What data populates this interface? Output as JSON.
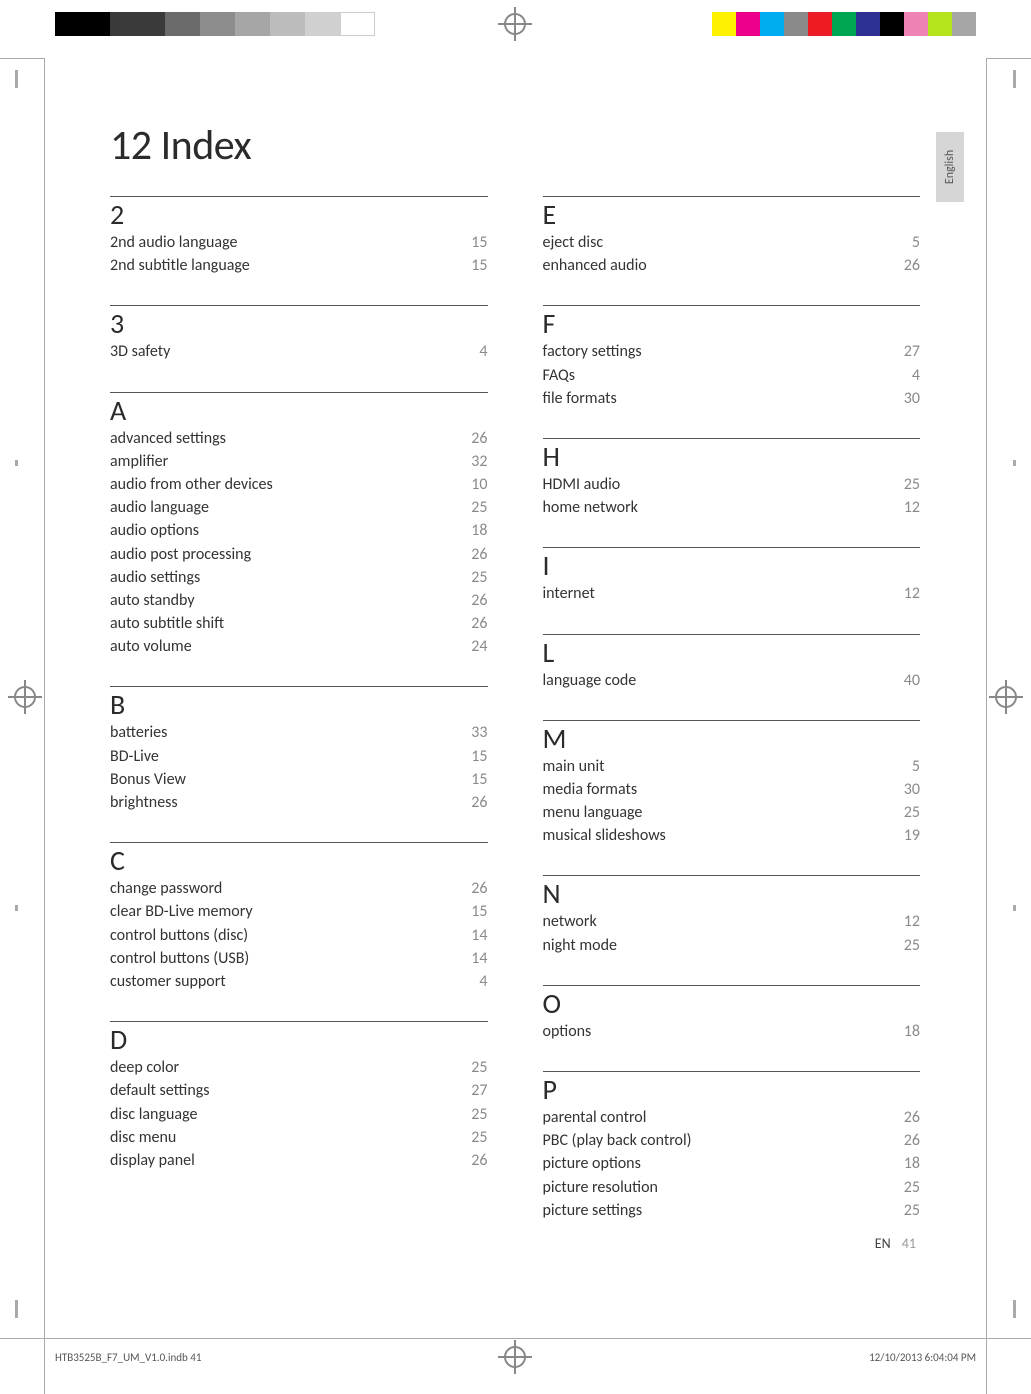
{
  "title": "12 Index",
  "language_tab": "English",
  "footer": {
    "lang_code": "EN",
    "page_num": "41",
    "file": "HTB3525B_F7_UM_V1.0.indb   41",
    "timestamp": "12/10/2013   6:04:04 PM"
  },
  "colorbars": {
    "left": [
      "#000000",
      "#3a3a3a",
      "#6b6b6b",
      "#8c8c8c",
      "#a6a6a6",
      "#bcbcbc",
      "#d0d0d0",
      "#ffffff"
    ],
    "right": [
      "#fff200",
      "#ec008c",
      "#00aeef",
      "#8a8a8a",
      "#ed1c24",
      "#00a651",
      "#2e3192",
      "#000000",
      "#ee82b4",
      "#b5e61d",
      "#a6a6a6"
    ]
  },
  "sections_left": [
    {
      "letter": "2",
      "entries": [
        {
          "t": "2nd audio language",
          "p": "15"
        },
        {
          "t": "2nd subtitle language",
          "p": "15"
        }
      ]
    },
    {
      "letter": "3",
      "entries": [
        {
          "t": "3D safety",
          "p": "4"
        }
      ]
    },
    {
      "letter": "A",
      "entries": [
        {
          "t": "advanced settings",
          "p": "26"
        },
        {
          "t": "amplifier",
          "p": "32"
        },
        {
          "t": "audio from other devices",
          "p": "10"
        },
        {
          "t": "audio language",
          "p": "25"
        },
        {
          "t": "audio options",
          "p": "18"
        },
        {
          "t": "audio post processing",
          "p": "26"
        },
        {
          "t": "audio settings",
          "p": "25"
        },
        {
          "t": "auto standby",
          "p": "26"
        },
        {
          "t": "auto subtitle shift",
          "p": "26"
        },
        {
          "t": "auto volume",
          "p": "24"
        }
      ]
    },
    {
      "letter": "B",
      "entries": [
        {
          "t": "batteries",
          "p": "33"
        },
        {
          "t": "BD-Live",
          "p": "15"
        },
        {
          "t": "Bonus View",
          "p": "15"
        },
        {
          "t": "brightness",
          "p": "26"
        }
      ]
    },
    {
      "letter": "C",
      "entries": [
        {
          "t": "change password",
          "p": "26"
        },
        {
          "t": "clear BD-Live memory",
          "p": "15"
        },
        {
          "t": "control buttons (disc)",
          "p": "14"
        },
        {
          "t": "control buttons (USB)",
          "p": "14"
        },
        {
          "t": "customer support",
          "p": "4"
        }
      ]
    },
    {
      "letter": "D",
      "entries": [
        {
          "t": "deep color",
          "p": "25"
        },
        {
          "t": "default settings",
          "p": "27"
        },
        {
          "t": "disc language",
          "p": "25"
        },
        {
          "t": "disc menu",
          "p": "25"
        },
        {
          "t": "display panel",
          "p": "26"
        }
      ]
    }
  ],
  "sections_right": [
    {
      "letter": "E",
      "entries": [
        {
          "t": "eject disc",
          "p": "5"
        },
        {
          "t": "enhanced audio",
          "p": "26"
        }
      ]
    },
    {
      "letter": "F",
      "entries": [
        {
          "t": "factory settings",
          "p": "27"
        },
        {
          "t": "FAQs",
          "p": "4"
        },
        {
          "t": "file formats",
          "p": "30"
        }
      ]
    },
    {
      "letter": "H",
      "entries": [
        {
          "t": "HDMI audio",
          "p": "25"
        },
        {
          "t": "home network",
          "p": "12"
        }
      ]
    },
    {
      "letter": "I",
      "entries": [
        {
          "t": "internet",
          "p": "12"
        }
      ]
    },
    {
      "letter": "L",
      "entries": [
        {
          "t": "language code",
          "p": "40"
        }
      ]
    },
    {
      "letter": "M",
      "entries": [
        {
          "t": "main unit",
          "p": "5"
        },
        {
          "t": "media formats",
          "p": "30"
        },
        {
          "t": "menu language",
          "p": "25"
        },
        {
          "t": "musical slideshows",
          "p": "19"
        }
      ]
    },
    {
      "letter": "N",
      "entries": [
        {
          "t": "network",
          "p": "12"
        },
        {
          "t": "night mode",
          "p": "25"
        }
      ]
    },
    {
      "letter": "O",
      "entries": [
        {
          "t": "options",
          "p": "18"
        }
      ]
    },
    {
      "letter": "P",
      "entries": [
        {
          "t": "parental control",
          "p": "26"
        },
        {
          "t": "PBC (play back control)",
          "p": "26"
        },
        {
          "t": "picture options",
          "p": "18"
        },
        {
          "t": "picture resolution",
          "p": "25"
        },
        {
          "t": "picture settings",
          "p": "25"
        }
      ]
    }
  ]
}
